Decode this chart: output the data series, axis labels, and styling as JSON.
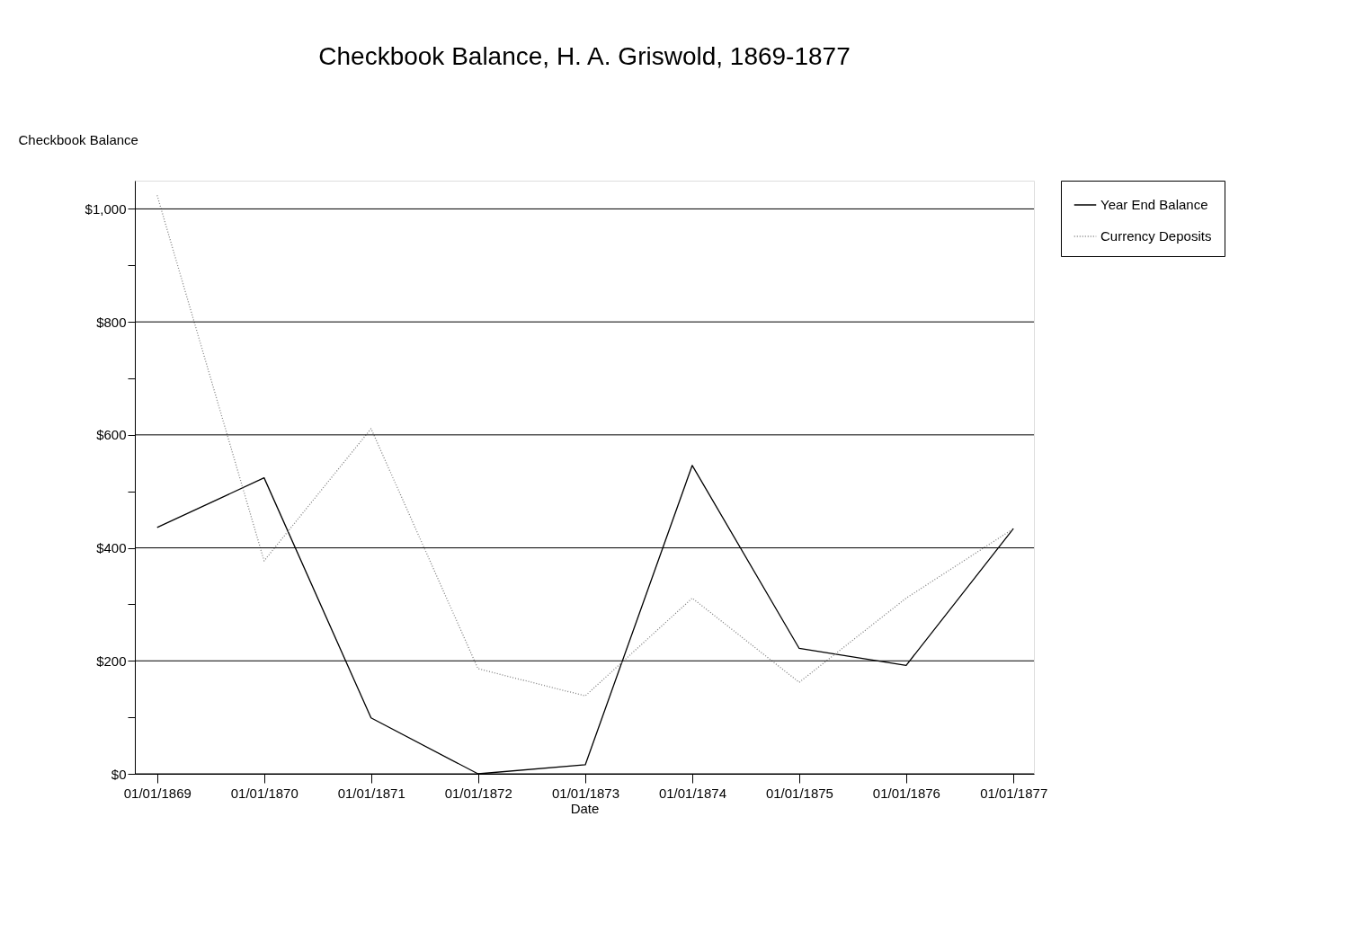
{
  "chart_data": {
    "type": "line",
    "title": "Checkbook Balance, H. A. Griswold, 1869-1877",
    "xlabel": "Date",
    "ylabel": "Checkbook Balance",
    "x": [
      "1869-01-01",
      "1870-01-01",
      "1871-01-01",
      "1872-01-01",
      "1873-01-01",
      "1874-01-01",
      "1875-01-01",
      "1876-01-01",
      "1877-01-01"
    ],
    "series": [
      {
        "name": "Year End Balance",
        "color": "#000000",
        "line_style": "solid",
        "values": [
          436,
          524,
          99,
          0,
          16,
          546,
          222,
          192,
          434
        ]
      },
      {
        "name": "Currency Deposits",
        "color": "#808080",
        "line_style": "dotted",
        "values": [
          1024,
          377,
          611,
          186,
          138,
          311,
          162,
          311,
          434
        ]
      }
    ],
    "xlim": [
      "1868-10-17",
      "1877-03-12"
    ],
    "xticks": [
      {
        "value": "1869-01-01",
        "label": "01/01/1869"
      },
      {
        "value": "1870-01-01",
        "label": "01/01/1870"
      },
      {
        "value": "1871-01-01",
        "label": "01/01/1871"
      },
      {
        "value": "1872-01-01",
        "label": "01/01/1872"
      },
      {
        "value": "1873-01-01",
        "label": "01/01/1873"
      },
      {
        "value": "1874-01-01",
        "label": "01/01/1874"
      },
      {
        "value": "1875-01-01",
        "label": "01/01/1875"
      },
      {
        "value": "1876-01-01",
        "label": "01/01/1876"
      },
      {
        "value": "1877-01-01",
        "label": "01/01/1877"
      }
    ],
    "ylim": [
      0,
      1050
    ],
    "yticks": [
      {
        "value": 0,
        "label": "$0"
      },
      {
        "value": 100,
        "label": null
      },
      {
        "value": 200,
        "label": "$200"
      },
      {
        "value": 300,
        "label": null
      },
      {
        "value": 400,
        "label": "$400"
      },
      {
        "value": 500,
        "label": null
      },
      {
        "value": 600,
        "label": "$600"
      },
      {
        "value": 700,
        "label": null
      },
      {
        "value": 800,
        "label": "$800"
      },
      {
        "value": 900,
        "label": null
      },
      {
        "value": 1000,
        "label": "$1,000"
      }
    ],
    "grid": "y",
    "legend": "top right",
    "marker": "none"
  }
}
